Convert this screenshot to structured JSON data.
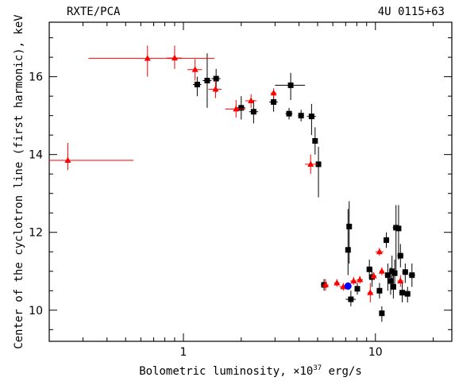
{
  "chart_data": {
    "type": "scatter",
    "title_left": "RXTE/PCA",
    "title_right": "4U 0115+63",
    "xlabel_pre": "Bolometric luminosity, ×10",
    "xlabel_exp": "37",
    "xlabel_post": " erg/s",
    "ylabel": "Center of the cyclotron line (first harmonic), keV",
    "xscale": "log",
    "xlim": [
      0.2,
      25
    ],
    "ylim": [
      9.2,
      17.4
    ],
    "x_ticks": [
      {
        "value": 1,
        "label": "1"
      },
      {
        "value": 10,
        "label": "10"
      }
    ],
    "y_ticks": [
      {
        "value": 10,
        "label": "10"
      },
      {
        "value": 12,
        "label": "12"
      },
      {
        "value": 14,
        "label": "14"
      },
      {
        "value": 16,
        "label": "16"
      }
    ],
    "series": [
      {
        "marker": "square",
        "color": "#000000",
        "points": [
          {
            "x": 1.18,
            "y": 15.8,
            "xlo": 1.12,
            "xhi": 1.24,
            "ylo": 15.5,
            "yhi": 16.0
          },
          {
            "x": 1.33,
            "y": 15.9,
            "xlo": 1.26,
            "xhi": 1.4,
            "ylo": 15.2,
            "yhi": 16.6
          },
          {
            "x": 1.48,
            "y": 15.95,
            "xlo": 1.4,
            "xhi": 1.56,
            "ylo": 15.6,
            "yhi": 16.2
          },
          {
            "x": 2.0,
            "y": 15.2,
            "xlo": 1.9,
            "xhi": 2.1,
            "ylo": 14.9,
            "yhi": 15.5
          },
          {
            "x": 2.32,
            "y": 15.1,
            "xlo": 2.2,
            "xhi": 2.45,
            "ylo": 14.8,
            "yhi": 15.4
          },
          {
            "x": 2.95,
            "y": 15.35,
            "xlo": 2.8,
            "xhi": 3.1,
            "ylo": 15.1,
            "yhi": 15.6
          },
          {
            "x": 3.55,
            "y": 15.05,
            "xlo": 3.4,
            "xhi": 3.7,
            "ylo": 14.9,
            "yhi": 15.2
          },
          {
            "x": 3.62,
            "y": 15.78,
            "xlo": 3.0,
            "xhi": 4.3,
            "ylo": 15.4,
            "yhi": 16.1
          },
          {
            "x": 4.1,
            "y": 15.0,
            "xlo": 3.95,
            "xhi": 4.25,
            "ylo": 14.85,
            "yhi": 15.15
          },
          {
            "x": 4.65,
            "y": 14.98,
            "xlo": 4.4,
            "xhi": 4.9,
            "ylo": 14.5,
            "yhi": 15.3
          },
          {
            "x": 4.85,
            "y": 14.35,
            "xlo": 4.7,
            "xhi": 5.0,
            "ylo": 14.0,
            "yhi": 14.7
          },
          {
            "x": 5.05,
            "y": 13.75,
            "xlo": 4.9,
            "xhi": 5.2,
            "ylo": 12.9,
            "yhi": 14.2
          },
          {
            "x": 5.4,
            "y": 10.65,
            "xlo": 5.2,
            "xhi": 5.6,
            "ylo": 10.5,
            "yhi": 10.8
          },
          {
            "x": 7.2,
            "y": 11.55,
            "xlo": 7.0,
            "xhi": 7.4,
            "ylo": 10.9,
            "yhi": 12.6
          },
          {
            "x": 7.3,
            "y": 12.15,
            "xlo": 7.1,
            "xhi": 7.5,
            "ylo": 11.2,
            "yhi": 12.8
          },
          {
            "x": 7.45,
            "y": 10.28,
            "xlo": 7.0,
            "xhi": 7.9,
            "ylo": 10.1,
            "yhi": 10.5
          },
          {
            "x": 8.05,
            "y": 10.55,
            "xlo": 7.8,
            "xhi": 8.3,
            "ylo": 10.4,
            "yhi": 10.7
          },
          {
            "x": 9.3,
            "y": 11.05,
            "xlo": 9.0,
            "xhi": 9.6,
            "ylo": 10.8,
            "yhi": 11.3
          },
          {
            "x": 9.6,
            "y": 10.85,
            "xlo": 9.3,
            "xhi": 9.9,
            "ylo": 10.6,
            "yhi": 11.1
          },
          {
            "x": 10.5,
            "y": 10.5,
            "xlo": 10.2,
            "xhi": 10.8,
            "ylo": 10.3,
            "yhi": 10.7
          },
          {
            "x": 10.8,
            "y": 9.92,
            "xlo": 10.5,
            "xhi": 11.1,
            "ylo": 9.7,
            "yhi": 10.1
          },
          {
            "x": 11.4,
            "y": 11.8,
            "xlo": 11.1,
            "xhi": 11.7,
            "ylo": 11.6,
            "yhi": 12.0
          },
          {
            "x": 11.6,
            "y": 10.9,
            "xlo": 11.2,
            "xhi": 12.0,
            "ylo": 10.5,
            "yhi": 11.2
          },
          {
            "x": 12.0,
            "y": 10.75,
            "xlo": 11.6,
            "xhi": 12.4,
            "ylo": 10.4,
            "yhi": 11.1
          },
          {
            "x": 12.2,
            "y": 11.0,
            "xlo": 11.8,
            "xhi": 12.6,
            "ylo": 10.6,
            "yhi": 11.4
          },
          {
            "x": 12.4,
            "y": 10.6,
            "xlo": 12.0,
            "xhi": 12.8,
            "ylo": 10.3,
            "yhi": 10.9
          },
          {
            "x": 12.6,
            "y": 10.95,
            "xlo": 12.2,
            "xhi": 13.0,
            "ylo": 10.6,
            "yhi": 11.3
          },
          {
            "x": 12.8,
            "y": 12.12,
            "xlo": 12.3,
            "xhi": 13.3,
            "ylo": 11.0,
            "yhi": 12.7
          },
          {
            "x": 13.2,
            "y": 12.1,
            "xlo": 12.8,
            "xhi": 13.6,
            "ylo": 11.3,
            "yhi": 12.7
          },
          {
            "x": 13.5,
            "y": 11.4,
            "xlo": 13.0,
            "xhi": 14.0,
            "ylo": 11.1,
            "yhi": 11.7
          },
          {
            "x": 13.8,
            "y": 10.45,
            "xlo": 13.3,
            "xhi": 14.3,
            "ylo": 10.2,
            "yhi": 10.7
          },
          {
            "x": 14.3,
            "y": 10.98,
            "xlo": 13.8,
            "xhi": 14.8,
            "ylo": 10.7,
            "yhi": 11.2
          },
          {
            "x": 14.7,
            "y": 10.42,
            "xlo": 14.2,
            "xhi": 15.2,
            "ylo": 10.2,
            "yhi": 10.6
          },
          {
            "x": 15.5,
            "y": 10.9,
            "xlo": 14.9,
            "xhi": 16.1,
            "ylo": 10.6,
            "yhi": 11.2
          }
        ]
      },
      {
        "marker": "triangle",
        "color": "#ff0000",
        "points": [
          {
            "x": 0.25,
            "y": 13.85,
            "xlo": 0.2,
            "xhi": 0.55,
            "ylo": 13.6,
            "yhi": 14.3
          },
          {
            "x": 0.65,
            "y": 16.47,
            "xlo": 0.32,
            "xhi": 1.45,
            "ylo": 16.0,
            "yhi": 16.8
          },
          {
            "x": 0.9,
            "y": 16.48,
            "xlo": 0.82,
            "xhi": 0.98,
            "ylo": 16.2,
            "yhi": 16.8
          },
          {
            "x": 1.15,
            "y": 16.18,
            "xlo": 1.05,
            "xhi": 1.25,
            "ylo": 15.9,
            "yhi": 16.45
          },
          {
            "x": 1.47,
            "y": 15.68,
            "xlo": 1.35,
            "xhi": 1.58,
            "ylo": 15.45,
            "yhi": 15.9
          },
          {
            "x": 1.88,
            "y": 15.17,
            "xlo": 1.65,
            "xhi": 2.1,
            "ylo": 14.95,
            "yhi": 15.4
          },
          {
            "x": 2.25,
            "y": 15.38,
            "xlo": 2.1,
            "xhi": 2.4,
            "ylo": 15.2,
            "yhi": 15.55
          },
          {
            "x": 2.95,
            "y": 15.58,
            "xlo": 2.85,
            "xhi": 3.05,
            "ylo": 15.45,
            "yhi": 15.7
          },
          {
            "x": 4.6,
            "y": 13.75,
            "xlo": 4.3,
            "xhi": 5.0,
            "ylo": 13.5,
            "yhi": 14.0
          },
          {
            "x": 5.5,
            "y": 10.65,
            "xlo": 5.3,
            "xhi": 5.7,
            "ylo": 10.5,
            "yhi": 10.8
          },
          {
            "x": 6.3,
            "y": 10.7,
            "xlo": 6.1,
            "xhi": 6.5,
            "ylo": 10.6,
            "yhi": 10.8
          },
          {
            "x": 6.8,
            "y": 10.6,
            "xlo": 6.5,
            "xhi": 7.1,
            "ylo": 10.5,
            "yhi": 10.7
          },
          {
            "x": 7.7,
            "y": 10.75,
            "xlo": 7.4,
            "xhi": 8.0,
            "ylo": 10.65,
            "yhi": 10.85
          },
          {
            "x": 8.3,
            "y": 10.78,
            "xlo": 8.0,
            "xhi": 8.6,
            "ylo": 10.68,
            "yhi": 10.88
          },
          {
            "x": 9.4,
            "y": 10.45,
            "xlo": 9.1,
            "xhi": 9.7,
            "ylo": 10.2,
            "yhi": 10.7
          },
          {
            "x": 9.8,
            "y": 10.88,
            "xlo": 9.5,
            "xhi": 10.1,
            "ylo": 10.78,
            "yhi": 10.98
          },
          {
            "x": 10.5,
            "y": 11.5,
            "xlo": 10.0,
            "xhi": 11.0,
            "ylo": 11.4,
            "yhi": 11.6
          },
          {
            "x": 10.8,
            "y": 11.0,
            "xlo": 10.5,
            "xhi": 11.1,
            "ylo": 10.9,
            "yhi": 11.1
          },
          {
            "x": 13.5,
            "y": 10.75,
            "xlo": 13.0,
            "xhi": 14.0,
            "ylo": 10.6,
            "yhi": 10.9
          }
        ]
      },
      {
        "marker": "circle",
        "color": "#0000ff",
        "points": [
          {
            "x": 7.2,
            "y": 10.62,
            "xlo": 6.9,
            "xhi": 7.5,
            "ylo": 10.52,
            "yhi": 10.72
          }
        ]
      }
    ]
  }
}
